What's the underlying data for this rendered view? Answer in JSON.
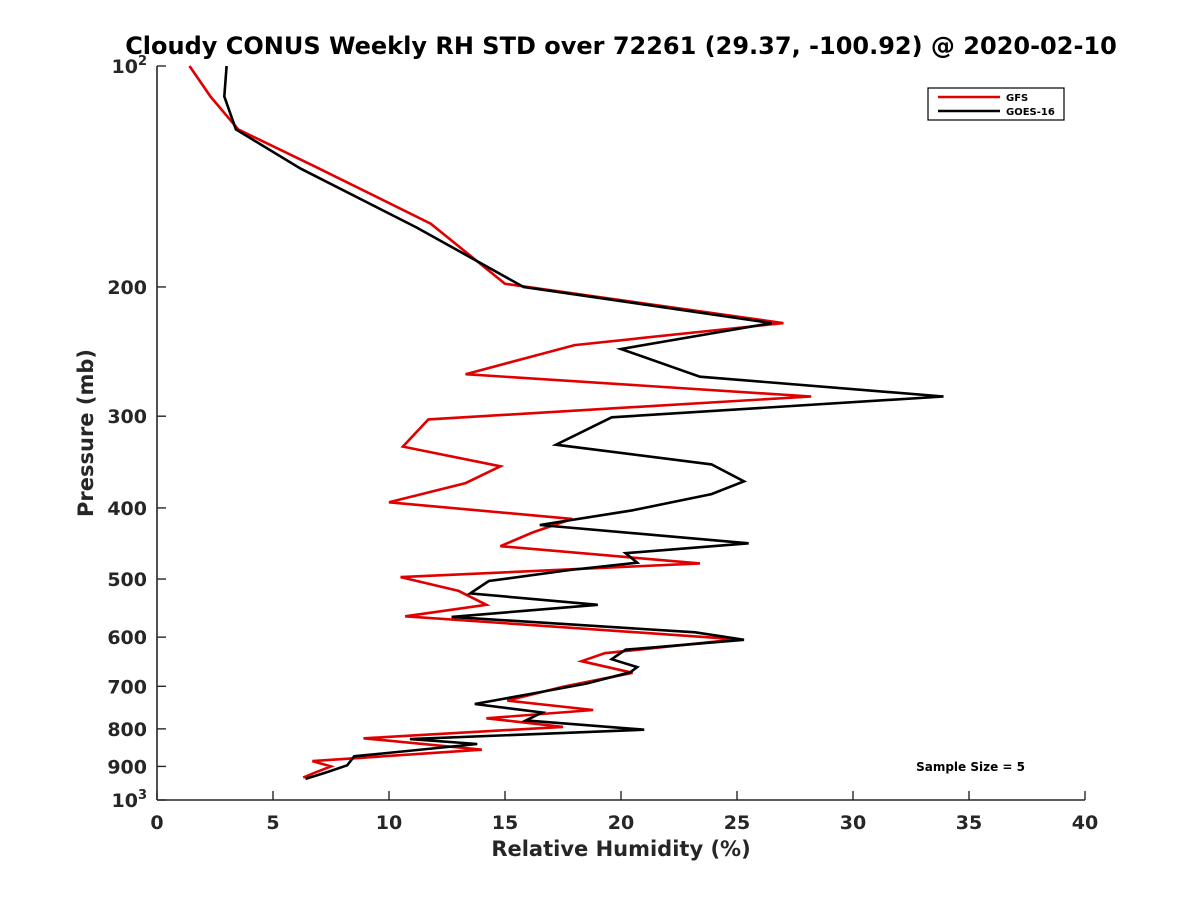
{
  "chart_data": {
    "type": "line",
    "title": "Cloudy CONUS Weekly RH STD over 72261 (29.37, -100.92) @ 2020-02-10",
    "xlabel": "Relative Humidity (%)",
    "ylabel": "Pressure (mb)",
    "xlim": [
      0,
      40
    ],
    "ylim": [
      100,
      1000
    ],
    "y_scale": "log",
    "y_reversed": true,
    "x_ticks": [
      0,
      5,
      10,
      15,
      20,
      25,
      30,
      35,
      40
    ],
    "y_ticks": [
      200,
      300,
      400,
      500,
      600,
      700,
      800,
      900
    ],
    "y_end_labels": [
      {
        "value": 100,
        "base": "10",
        "exp": "2"
      },
      {
        "value": 1000,
        "base": "10",
        "exp": "3"
      }
    ],
    "legend_position": "top-right",
    "note": "Sample Size = 5",
    "series": [
      {
        "name": "GFS",
        "color": "#e00000",
        "x": [
          1.4,
          2.3,
          3.5,
          6.8,
          11.8,
          15.0,
          27.0,
          18.0,
          13.3,
          28.2,
          11.7,
          10.6,
          14.8,
          13.3,
          10.0,
          17.9,
          16.2,
          14.8,
          20.0,
          23.4,
          10.5,
          13.0,
          14.2,
          10.7,
          25.0,
          19.3,
          18.3,
          20.5,
          17.5,
          15.1,
          18.8,
          14.2,
          17.5,
          8.9,
          14.0,
          6.7,
          7.5,
          6.8,
          6.3
        ],
        "y": [
          100,
          110,
          122,
          137,
          164,
          198,
          224,
          240,
          263,
          282,
          303,
          330,
          351,
          370,
          393,
          414,
          432,
          451,
          466,
          476,
          497,
          519,
          542,
          562,
          604,
          631,
          647,
          671,
          701,
          732,
          754,
          774,
          795,
          824,
          854,
          885,
          900,
          918,
          932
        ]
      },
      {
        "name": "GOES-16",
        "color": "#000000",
        "x": [
          3.0,
          2.9,
          3.4,
          6.2,
          11.2,
          15.8,
          26.5,
          20.0,
          23.4,
          33.9,
          19.6,
          17.2,
          23.9,
          25.3,
          23.9,
          20.5,
          16.5,
          25.5,
          20.2,
          20.7,
          17.8,
          14.3,
          13.5,
          19.0,
          12.7,
          23.2,
          25.3,
          20.2,
          19.6,
          20.7,
          20.4,
          18.5,
          16.2,
          13.7,
          16.6,
          15.9,
          21.0,
          10.9,
          13.8,
          8.5,
          8.2,
          7.3,
          6.4
        ],
        "y": [
          100,
          110,
          122,
          138,
          166,
          200,
          224,
          243,
          265,
          282,
          301,
          328,
          349,
          368,
          383,
          403,
          422,
          447,
          461,
          475,
          486,
          503,
          523,
          542,
          563,
          591,
          605,
          624,
          643,
          659,
          670,
          694,
          716,
          740,
          760,
          779,
          802,
          826,
          839,
          872,
          897,
          917,
          936
        ]
      }
    ]
  }
}
